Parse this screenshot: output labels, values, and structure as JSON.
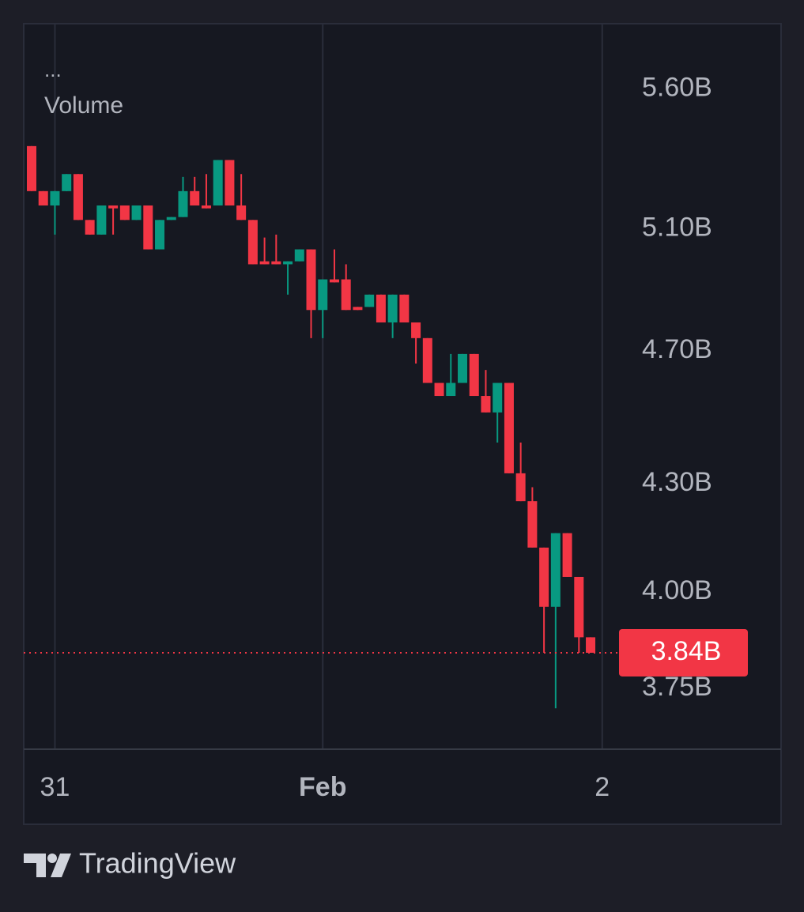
{
  "chart_data": {
    "type": "candlestick",
    "legend": [
      "...",
      "Volume"
    ],
    "brand": "TradingView",
    "log_scale": true,
    "grid": true,
    "up_color": "#089981",
    "down_color": "#f23645",
    "categories": [
      null,
      null,
      "31",
      null,
      null,
      null,
      null,
      null,
      null,
      null,
      null,
      null,
      null,
      null,
      null,
      null,
      null,
      null,
      null,
      null,
      null,
      null,
      null,
      null,
      null,
      "Feb",
      null,
      null,
      null,
      null,
      null,
      null,
      null,
      null,
      null,
      null,
      null,
      null,
      null,
      null,
      null,
      null,
      null,
      null,
      null,
      null,
      null,
      null,
      null,
      "2"
    ],
    "open": [
      5.39,
      5.23,
      5.18,
      5.23,
      5.29,
      5.13,
      5.08,
      5.18,
      5.18,
      5.13,
      5.18,
      5.03,
      5.13,
      5.14,
      5.23,
      5.18,
      5.18,
      5.34,
      5.18,
      5.13,
      4.99,
      4.99,
      4.98,
      4.99,
      5.03,
      4.83,
      4.93,
      4.93,
      4.84,
      4.84,
      4.88,
      4.79,
      4.88,
      4.79,
      4.74,
      4.6,
      4.56,
      4.6,
      4.69,
      4.56,
      4.51,
      4.6,
      4.33,
      4.25,
      4.12,
      3.96,
      4.16,
      4.04,
      3.88,
      null
    ],
    "high": [
      5.39,
      5.23,
      5.23,
      5.29,
      5.29,
      5.13,
      5.18,
      5.18,
      5.18,
      5.18,
      5.18,
      5.13,
      5.14,
      5.28,
      5.28,
      5.29,
      5.34,
      5.34,
      5.29,
      5.13,
      5.07,
      5.08,
      4.99,
      5.03,
      5.03,
      4.93,
      5.03,
      4.98,
      4.84,
      4.88,
      4.88,
      4.88,
      4.88,
      4.79,
      4.74,
      4.6,
      4.69,
      4.69,
      4.69,
      4.64,
      4.6,
      4.6,
      4.42,
      4.29,
      4.12,
      4.16,
      4.16,
      4.04,
      3.88,
      null
    ],
    "low": [
      5.23,
      5.18,
      5.08,
      5.23,
      5.13,
      5.08,
      5.08,
      5.08,
      5.13,
      5.13,
      5.03,
      5.03,
      5.13,
      5.14,
      5.18,
      5.17,
      5.18,
      5.18,
      5.13,
      4.98,
      4.98,
      4.98,
      4.88,
      4.99,
      4.74,
      4.74,
      4.92,
      4.83,
      4.83,
      4.84,
      4.79,
      4.74,
      4.79,
      4.66,
      4.6,
      4.56,
      4.56,
      4.6,
      4.56,
      4.51,
      4.42,
      4.33,
      4.25,
      4.12,
      3.84,
      3.7,
      4.04,
      3.84,
      3.84,
      null
    ],
    "close": [
      5.23,
      5.18,
      5.23,
      5.29,
      5.13,
      5.08,
      5.18,
      5.17,
      5.13,
      5.18,
      5.03,
      5.13,
      5.14,
      5.23,
      5.18,
      5.17,
      5.34,
      5.18,
      5.13,
      4.98,
      4.98,
      4.98,
      4.99,
      5.03,
      4.83,
      4.93,
      4.92,
      4.83,
      4.83,
      4.88,
      4.79,
      4.88,
      4.79,
      4.74,
      4.6,
      4.56,
      4.6,
      4.69,
      4.56,
      4.51,
      4.6,
      4.33,
      4.25,
      4.12,
      3.96,
      4.16,
      4.04,
      3.88,
      3.84,
      null
    ],
    "ylim": [
      3.6,
      5.85
    ],
    "yticks": [
      {
        "value": 5.6,
        "label": "5.60B"
      },
      {
        "value": 5.1,
        "label": "5.10B"
      },
      {
        "value": 4.7,
        "label": "4.70B"
      },
      {
        "value": 4.3,
        "label": "4.30B"
      },
      {
        "value": 4.0,
        "label": "4.00B"
      },
      {
        "value": 3.75,
        "label": "3.75B"
      }
    ],
    "last_price": {
      "value": 3.84,
      "label": "3.84B"
    }
  }
}
